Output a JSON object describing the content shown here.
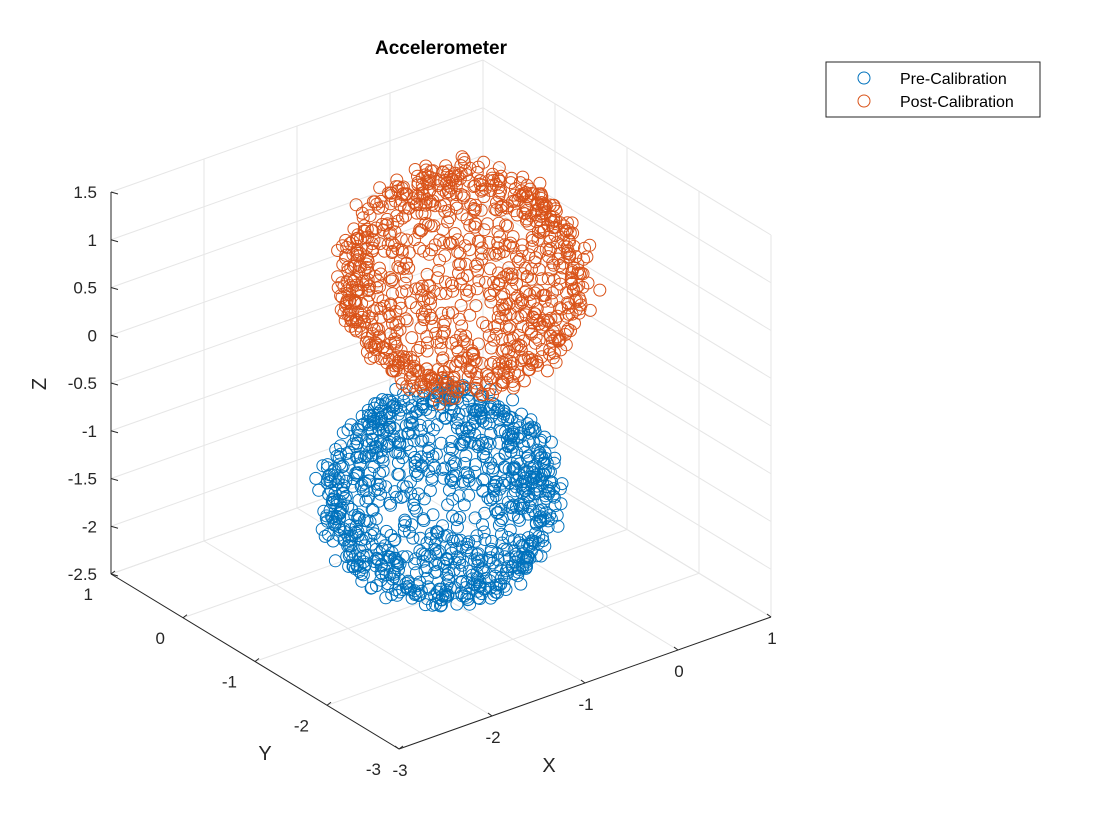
{
  "chart_data": {
    "type": "scatter",
    "title": "Accelerometer",
    "xlabel": "X",
    "ylabel": "Y",
    "zlabel": "Z",
    "xlim": [
      -3,
      1
    ],
    "ylim": [
      -3,
      1
    ],
    "zlim": [
      -2.5,
      1.5
    ],
    "x_ticks": [
      "-3",
      "-2",
      "-1",
      "0",
      "1"
    ],
    "y_ticks": [
      "-3",
      "-2",
      "-1",
      "0",
      "1"
    ],
    "z_ticks": [
      "-2.5",
      "-2",
      "-1.5",
      "-1",
      "-0.5",
      "0",
      "0.5",
      "1",
      "1.5"
    ],
    "grid": true,
    "legend_position": "top-right",
    "marker": "open-circle",
    "series": [
      {
        "name": "Pre-Calibration",
        "color": "#0072BD",
        "shape": "sphere",
        "center": [
          -1.0,
          -1.0,
          -1.45
        ],
        "radius": 0.95,
        "points": 1000
      },
      {
        "name": "Post-Calibration",
        "color": "#D95319",
        "shape": "sphere",
        "center": [
          0.0,
          0.0,
          0.0
        ],
        "radius": 1.0,
        "points": 1000
      }
    ]
  }
}
